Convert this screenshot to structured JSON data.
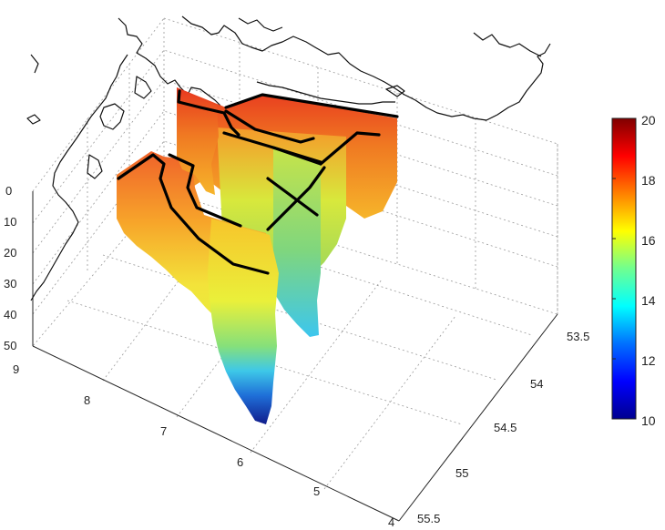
{
  "chart_data": {
    "type": "scatter",
    "title": "",
    "xlabel": "",
    "ylabel": "",
    "zlabel": "",
    "x_axis": {
      "ticks": [
        "4",
        "5",
        "6",
        "7",
        "8",
        "9"
      ]
    },
    "y_axis": {
      "ticks": [
        "53.5",
        "54",
        "54.5",
        "55",
        "55.5"
      ]
    },
    "z_axis": {
      "ticks": [
        "0",
        "10",
        "20",
        "30",
        "40",
        "50"
      ],
      "reversed": true
    },
    "colorbar": {
      "ticks": [
        "10",
        "12",
        "14",
        "16",
        "18",
        "20"
      ],
      "range": [
        10,
        20
      ],
      "colormap": "jet"
    },
    "colors": {
      "low": "#00008f",
      "high": "#800000",
      "track": "#000000",
      "coastline": "#111111"
    },
    "grid": true,
    "legend": "none"
  }
}
